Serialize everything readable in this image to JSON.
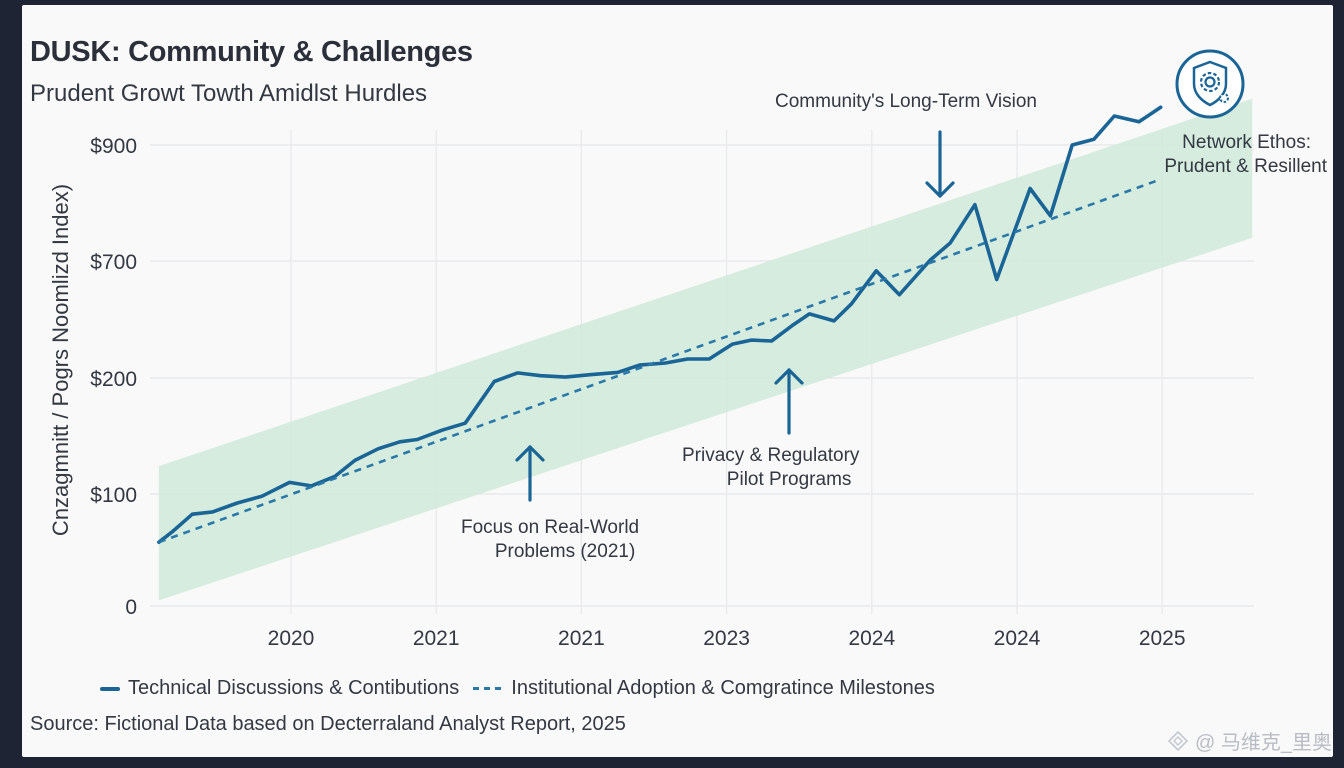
{
  "header": {
    "title": "DUSK: Community & Challenges",
    "subtitle": "Prudent Growt Towth Amidlst Hurdles"
  },
  "badge": {
    "icon": "shield-gear-icon",
    "caption_line1": "Network Ethos:",
    "caption_line2": "Prudent & Resillent"
  },
  "annotations": [
    {
      "id": "long-term-vision",
      "line1": "Community's Long-Term Vision",
      "line2": "",
      "arrow": "down"
    },
    {
      "id": "real-world",
      "line1": "Focus on Real-World",
      "line2": "Problems (2021)",
      "arrow": "up"
    },
    {
      "id": "privacy",
      "line1": "Privacy & Regulatory",
      "line2": "Pilot Programs",
      "arrow": "up"
    }
  ],
  "legend": {
    "items": [
      {
        "label": "Technical Discussions & Contibutions",
        "style": "solid"
      },
      {
        "label": "Institutional Adoption & Comgratince Milestones",
        "style": "dashed"
      }
    ]
  },
  "source": "Source: Fictional Data based on Decterraland Analyst Report, 2025",
  "watermark": {
    "icon": "diamond-logo-icon",
    "text": "@ 马维克_里奥"
  },
  "colors": {
    "line": "#1a6596",
    "dash": "#2a78a8",
    "band": "#cfeada",
    "text": "#333842",
    "frame": "#1e2433",
    "card": "#f9f9f9"
  },
  "chart_data": {
    "type": "line",
    "title": "DUSK: Community & Challenges",
    "subtitle": "Prudent Growt Towth Amidlst Hurdles",
    "xlabel": "",
    "ylabel": "Cnzagmnitt / Pogrs Noomlizd Index)",
    "x_tick_labels": [
      "2020",
      "2021",
      "2021",
      "2023",
      "2024",
      "2024",
      "2025"
    ],
    "y_tick_labels": [
      "0",
      "$100",
      "$200",
      "$700",
      "$900"
    ],
    "y_tick_values": [
      0,
      100,
      200,
      700,
      900
    ],
    "y_scale_note": "tick labels equally spaced (piecewise scale)",
    "x_range_ticks": [
      -0.92,
      6.62
    ],
    "grid": true,
    "legend_position": "bottom-left",
    "x_unit": "tick index (0 = first tick '2020')",
    "series": [
      {
        "name": "Technical Discussions & Contibutions",
        "style": "solid",
        "x": [
          -0.91,
          -0.82,
          -0.68,
          -0.54,
          -0.37,
          -0.2,
          -0.01,
          0.14,
          0.3,
          0.44,
          0.6,
          0.75,
          0.87,
          1.04,
          1.2,
          1.4,
          1.56,
          1.72,
          1.89,
          2.06,
          2.25,
          2.4,
          2.58,
          2.73,
          2.88,
          3.04,
          3.17,
          3.31,
          3.45,
          3.57,
          3.74,
          3.86,
          4.03,
          4.19,
          4.4,
          4.54,
          4.71,
          4.86,
          5.09,
          5.23,
          5.38,
          5.53,
          5.67,
          5.84,
          5.99
        ],
        "y": [
          57,
          66,
          82,
          84,
          92,
          98,
          110,
          107,
          115,
          129,
          139,
          145,
          147,
          155,
          161,
          197,
          222,
          210,
          204,
          214,
          224,
          255,
          264,
          281,
          281,
          345,
          362,
          358,
          423,
          474,
          444,
          517,
          658,
          556,
          701,
          731,
          797,
          621,
          825,
          778,
          900,
          910,
          950,
          940,
          965
        ]
      },
      {
        "name": "Institutional Adoption & Comgratince Milestones",
        "style": "dashed",
        "x": [
          -0.91,
          5.98
        ],
        "y": [
          57,
          840
        ]
      }
    ],
    "band": {
      "name": "range band",
      "x": [
        -0.91,
        6.62
      ],
      "upper": [
        124,
        980
      ],
      "lower": [
        5,
        740
      ]
    },
    "annotations": [
      {
        "text": "Community's Long-Term Vision",
        "x": 4.48,
        "arrow": "down"
      },
      {
        "text": "Focus on Real-World Problems (2021)",
        "x": 1.64,
        "arrow": "up"
      },
      {
        "text": "Privacy & Regulatory Pilot Programs",
        "x": 3.43,
        "arrow": "up"
      },
      {
        "text": "Network Ethos: Prudent & Resillent",
        "x": 6.0,
        "arrow": "none"
      }
    ]
  }
}
